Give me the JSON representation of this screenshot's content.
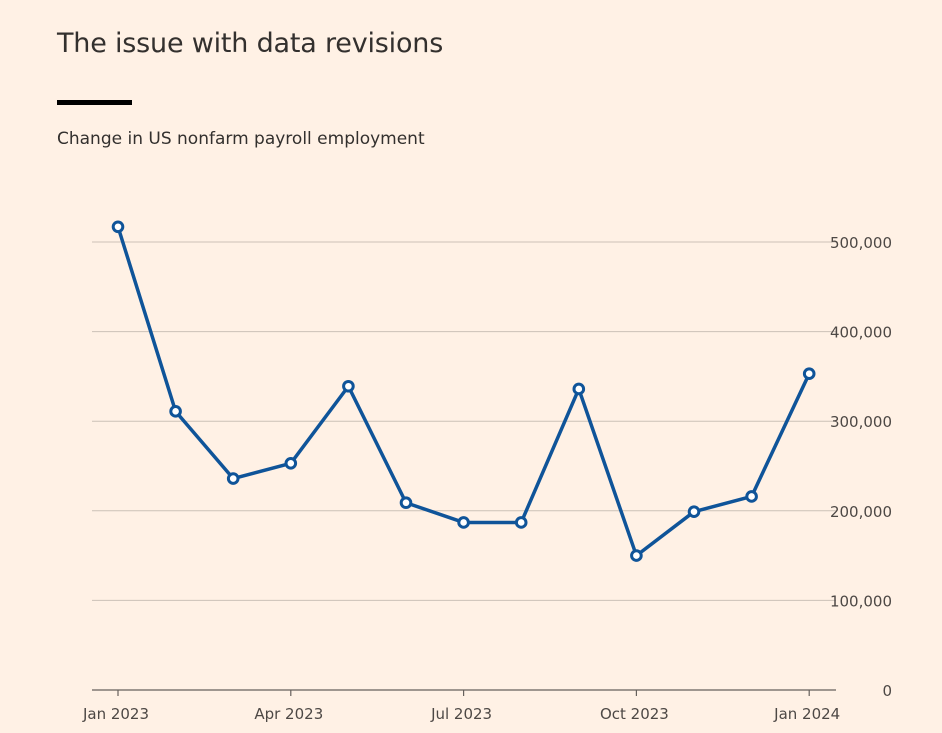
{
  "header": {
    "title": "The issue with data revisions",
    "subtitle": "Change in US nonfarm payroll employment"
  },
  "chart_data": {
    "type": "line",
    "title": "The issue with data revisions",
    "subtitle": "Change in US nonfarm payroll employment",
    "x": [
      "Jan 2023",
      "Feb 2023",
      "Mar 2023",
      "Apr 2023",
      "May 2023",
      "Jun 2023",
      "Jul 2023",
      "Aug 2023",
      "Sep 2023",
      "Oct 2023",
      "Nov 2023",
      "Dec 2023",
      "Jan 2024"
    ],
    "series": [
      {
        "values": [
          517000,
          311000,
          236000,
          253000,
          339000,
          209000,
          187000,
          187000,
          336000,
          150000,
          199000,
          216000,
          353000
        ]
      }
    ],
    "x_ticks": [
      "Jan 2023",
      "Apr 2023",
      "Jul 2023",
      "Oct 2023",
      "Jan 2024"
    ],
    "y_ticks": [
      0,
      100000,
      200000,
      300000,
      400000,
      500000
    ],
    "y_tick_labels": [
      "0",
      "100,000",
      "200,000",
      "300,000",
      "400,000",
      "500,000"
    ],
    "ylim": [
      0,
      500000
    ],
    "y_axis_side": "right",
    "grid": true,
    "line_color": "#0f5499",
    "grid_color": "#ccc1b7",
    "background": "#fff1e5"
  }
}
